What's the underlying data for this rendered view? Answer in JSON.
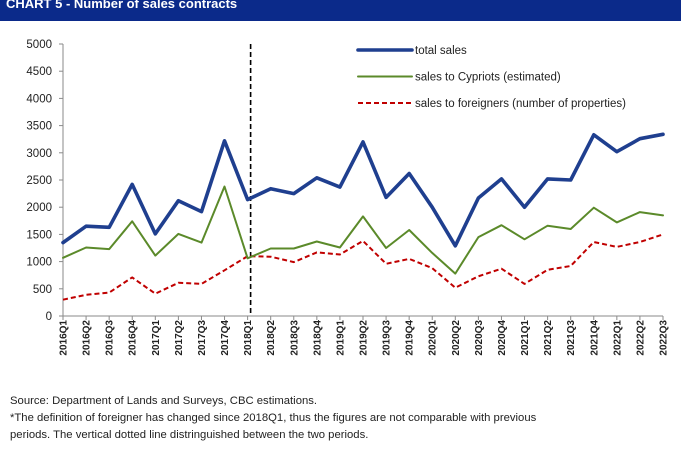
{
  "title": "CHART 5 - Number of sales contracts",
  "chart_data": {
    "type": "line",
    "x": [
      "2016Q1",
      "2016Q2",
      "2016Q3",
      "2016Q4",
      "2017Q1",
      "2017Q2",
      "2017Q3",
      "2017Q4",
      "2018Q1",
      "2018Q2",
      "2018Q3",
      "2018Q4",
      "2019Q1",
      "2019Q2",
      "2019Q3",
      "2019Q4",
      "2020Q1",
      "2020Q2",
      "2020Q3",
      "2020Q4",
      "2021Q1",
      "2021Q2",
      "2021Q3",
      "2021Q4",
      "2022Q1",
      "2022Q2",
      "2022Q3"
    ],
    "ylim": [
      0,
      5000
    ],
    "yticks": [
      "0",
      "500",
      "1000",
      "1500",
      "2000",
      "2500",
      "3000",
      "3500",
      "4000",
      "4500",
      "5000"
    ],
    "series": [
      {
        "name": "total sales",
        "color": "#1f3f8f",
        "style": "solid-thick",
        "values": [
          1350,
          1650,
          1630,
          2420,
          1510,
          2120,
          1920,
          3220,
          2140,
          2340,
          2250,
          2540,
          2370,
          3200,
          2180,
          2620,
          2000,
          1290,
          2170,
          2520,
          2000,
          2520,
          2500,
          3330,
          3020,
          3260,
          3340
        ]
      },
      {
        "name": "sales to Cypriots (estimated)",
        "color": "#5b8a2a",
        "style": "solid",
        "values": [
          1070,
          1260,
          1230,
          1740,
          1110,
          1510,
          1350,
          2380,
          1060,
          1240,
          1240,
          1370,
          1260,
          1830,
          1250,
          1580,
          1160,
          780,
          1450,
          1670,
          1410,
          1660,
          1600,
          1990,
          1720,
          1910,
          1850
        ]
      },
      {
        "name": "sales to foreigners (number of properties)",
        "color": "#c00000",
        "style": "dashed",
        "values": [
          300,
          390,
          430,
          710,
          410,
          610,
          590,
          840,
          1100,
          1090,
          990,
          1170,
          1130,
          1380,
          960,
          1050,
          880,
          520,
          730,
          870,
          590,
          850,
          920,
          1360,
          1270,
          1360,
          1500
        ]
      }
    ],
    "divider_at": "2018Q1",
    "legend_position": "top-right",
    "grid": false
  },
  "notes": {
    "source": "Source: Department of Lands and Surveys, CBC estimations.",
    "footnote_line1": "*The definition of foreigner has changed since 2018Q1, thus the figures are not comparable with previous",
    "footnote_line2": "periods. The vertical dotted line distringuished between the two periods."
  }
}
